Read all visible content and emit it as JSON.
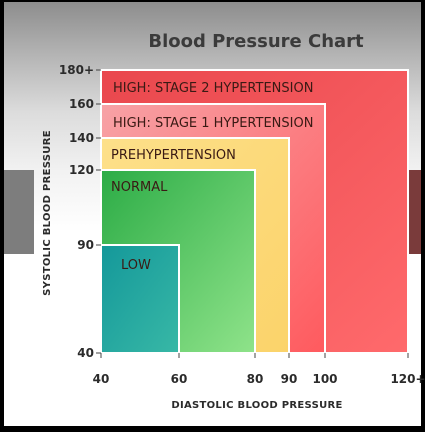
{
  "chart_data": {
    "type": "area",
    "title": "Blood Pressure Chart",
    "xlabel": "DIASTOLIC BLOOD PRESSURE",
    "ylabel": "SYSTOLIC BLOOD PRESSURE",
    "x_ticks": [
      "40",
      "60",
      "80",
      "90",
      "100",
      "120+"
    ],
    "y_ticks": [
      "40",
      "90",
      "120",
      "140",
      "160",
      "180+"
    ],
    "x_values": [
      40,
      60,
      80,
      90,
      100,
      120
    ],
    "y_values": [
      40,
      90,
      120,
      140,
      160,
      180
    ],
    "zones": [
      {
        "name": "HIGH: STAGE 2 HYPERTENSION",
        "x_max": 120,
        "y_max": 180,
        "color": "#ef4a4f"
      },
      {
        "name": "HIGH: STAGE 1 HYPERTENSION",
        "x_max": 100,
        "y_max": 160,
        "color": "#f8a7ab"
      },
      {
        "name": "PREHYPERTENSION",
        "x_max": 90,
        "y_max": 140,
        "color": "#fbd36a"
      },
      {
        "name": "NORMAL",
        "x_max": 80,
        "y_max": 120,
        "color": "#2fb44a"
      },
      {
        "name": "LOW",
        "x_max": 60,
        "y_max": 90,
        "color": "#1fa59b"
      }
    ]
  }
}
